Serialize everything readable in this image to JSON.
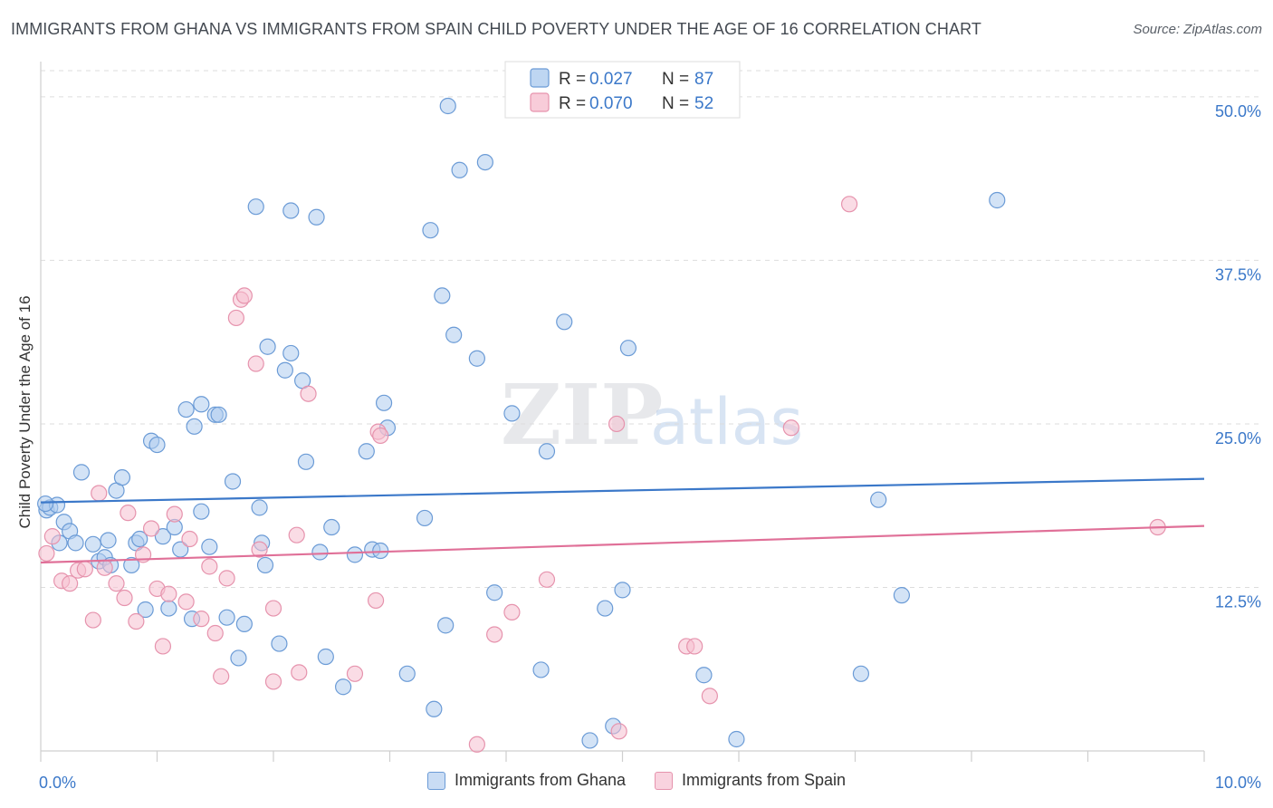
{
  "title": "IMMIGRANTS FROM GHANA VS IMMIGRANTS FROM SPAIN CHILD POVERTY UNDER THE AGE OF 16 CORRELATION CHART",
  "source": "Source: ZipAtlas.com",
  "watermark": {
    "zip": "ZIP",
    "atlas": "atlas"
  },
  "colors": {
    "ghana_fill": "#aeccef",
    "ghana_stroke": "#6b9bd6",
    "ghana_line": "#3b78c9",
    "spain_fill": "#f6bfd0",
    "spain_stroke": "#e693ad",
    "spain_line": "#e07098",
    "axis_label": "#3b78c9",
    "grid": "#dddddd"
  },
  "legend": {
    "rows": [
      {
        "r_label": "R =",
        "r_value": "0.027",
        "n_label": "N =",
        "n_value": "87"
      },
      {
        "r_label": "R =",
        "r_value": "0.070",
        "n_label": "N =",
        "n_value": "52"
      }
    ]
  },
  "chart_data": {
    "type": "scatter",
    "title": "IMMIGRANTS FROM GHANA VS IMMIGRANTS FROM SPAIN CHILD POVERTY UNDER THE AGE OF 16 CORRELATION CHART",
    "xlabel": "",
    "ylabel": "Child Poverty Under the Age of 16",
    "xlim": [
      0,
      10
    ],
    "ylim": [
      0,
      52
    ],
    "x_tick_labels": [
      {
        "value": 0,
        "label": "0.0%"
      },
      {
        "value": 10,
        "label": "10.0%"
      }
    ],
    "y_tick_labels": [
      {
        "value": 12.5,
        "label": "12.5%"
      },
      {
        "value": 25,
        "label": "25.0%"
      },
      {
        "value": 37.5,
        "label": "37.5%"
      },
      {
        "value": 50,
        "label": "50.0%"
      }
    ],
    "grid": true,
    "legend_position": "top-center",
    "series": [
      {
        "name": "Immigrants from Ghana",
        "r": 0.027,
        "n": 87,
        "trend": {
          "x": [
            0,
            10
          ],
          "y": [
            19.0,
            20.8
          ]
        },
        "points": [
          [
            0.05,
            18.4
          ],
          [
            0.08,
            18.6
          ],
          [
            0.14,
            18.8
          ],
          [
            0.16,
            15.9
          ],
          [
            0.2,
            17.5
          ],
          [
            0.25,
            16.8
          ],
          [
            0.3,
            15.9
          ],
          [
            0.35,
            21.3
          ],
          [
            0.45,
            15.8
          ],
          [
            0.5,
            14.5
          ],
          [
            0.55,
            14.8
          ],
          [
            0.6,
            14.2
          ],
          [
            0.58,
            16.1
          ],
          [
            0.65,
            19.9
          ],
          [
            0.7,
            20.9
          ],
          [
            0.78,
            14.2
          ],
          [
            0.82,
            15.9
          ],
          [
            0.85,
            16.2
          ],
          [
            0.9,
            10.8
          ],
          [
            0.95,
            23.7
          ],
          [
            1.0,
            23.4
          ],
          [
            1.05,
            16.4
          ],
          [
            1.1,
            10.9
          ],
          [
            1.15,
            17.1
          ],
          [
            1.2,
            15.4
          ],
          [
            1.25,
            26.1
          ],
          [
            1.3,
            10.1
          ],
          [
            1.32,
            24.8
          ],
          [
            1.38,
            26.5
          ],
          [
            1.38,
            18.3
          ],
          [
            1.45,
            15.6
          ],
          [
            1.5,
            25.7
          ],
          [
            1.53,
            25.7
          ],
          [
            1.6,
            10.2
          ],
          [
            1.65,
            20.6
          ],
          [
            1.7,
            7.1
          ],
          [
            1.75,
            9.7
          ],
          [
            1.85,
            41.6
          ],
          [
            1.88,
            18.6
          ],
          [
            1.9,
            15.9
          ],
          [
            1.93,
            14.2
          ],
          [
            1.95,
            30.9
          ],
          [
            2.05,
            8.2
          ],
          [
            2.1,
            29.1
          ],
          [
            2.15,
            41.3
          ],
          [
            2.15,
            30.4
          ],
          [
            2.25,
            28.3
          ],
          [
            2.28,
            22.1
          ],
          [
            2.37,
            40.8
          ],
          [
            2.4,
            15.2
          ],
          [
            2.45,
            7.2
          ],
          [
            2.5,
            17.1
          ],
          [
            2.6,
            4.9
          ],
          [
            2.7,
            15.0
          ],
          [
            2.8,
            22.9
          ],
          [
            2.85,
            15.4
          ],
          [
            2.92,
            15.3
          ],
          [
            2.95,
            26.6
          ],
          [
            2.98,
            24.7
          ],
          [
            3.15,
            5.9
          ],
          [
            3.3,
            17.8
          ],
          [
            3.35,
            39.8
          ],
          [
            3.38,
            3.2
          ],
          [
            3.45,
            34.8
          ],
          [
            3.48,
            9.6
          ],
          [
            3.5,
            49.3
          ],
          [
            3.55,
            31.8
          ],
          [
            3.6,
            44.4
          ],
          [
            3.75,
            30.0
          ],
          [
            3.82,
            45.0
          ],
          [
            3.9,
            12.1
          ],
          [
            4.05,
            25.8
          ],
          [
            4.3,
            6.2
          ],
          [
            4.35,
            22.9
          ],
          [
            4.5,
            32.8
          ],
          [
            4.72,
            0.8
          ],
          [
            4.85,
            10.9
          ],
          [
            4.92,
            1.9
          ],
          [
            5.0,
            12.3
          ],
          [
            5.05,
            30.8
          ],
          [
            5.7,
            5.8
          ],
          [
            5.98,
            0.9
          ],
          [
            7.05,
            5.9
          ],
          [
            7.2,
            19.2
          ],
          [
            7.4,
            11.9
          ],
          [
            8.22,
            42.1
          ],
          [
            0.04,
            18.9
          ]
        ]
      },
      {
        "name": "Immigrants from Spain",
        "r": 0.07,
        "n": 52,
        "trend": {
          "x": [
            0,
            10
          ],
          "y": [
            14.4,
            17.2
          ]
        },
        "points": [
          [
            0.05,
            15.1
          ],
          [
            0.1,
            16.4
          ],
          [
            0.18,
            13.0
          ],
          [
            0.25,
            12.8
          ],
          [
            0.32,
            13.8
          ],
          [
            0.38,
            13.9
          ],
          [
            0.45,
            10.0
          ],
          [
            0.5,
            19.7
          ],
          [
            0.55,
            14.0
          ],
          [
            0.65,
            12.8
          ],
          [
            0.72,
            11.7
          ],
          [
            0.75,
            18.2
          ],
          [
            0.82,
            9.9
          ],
          [
            0.88,
            15.0
          ],
          [
            0.95,
            17.0
          ],
          [
            1.0,
            12.4
          ],
          [
            1.05,
            8.0
          ],
          [
            1.1,
            12.0
          ],
          [
            1.15,
            18.1
          ],
          [
            1.25,
            11.4
          ],
          [
            1.28,
            16.2
          ],
          [
            1.38,
            10.1
          ],
          [
            1.45,
            14.1
          ],
          [
            1.5,
            9.0
          ],
          [
            1.55,
            5.7
          ],
          [
            1.6,
            13.2
          ],
          [
            1.68,
            33.1
          ],
          [
            1.72,
            34.5
          ],
          [
            1.75,
            34.8
          ],
          [
            1.85,
            29.6
          ],
          [
            1.88,
            15.4
          ],
          [
            2.0,
            10.9
          ],
          [
            2.0,
            5.3
          ],
          [
            2.2,
            16.5
          ],
          [
            2.22,
            6.0
          ],
          [
            2.3,
            27.3
          ],
          [
            2.7,
            5.9
          ],
          [
            2.88,
            11.5
          ],
          [
            2.9,
            24.4
          ],
          [
            2.92,
            24.1
          ],
          [
            3.75,
            0.5
          ],
          [
            3.9,
            8.9
          ],
          [
            4.05,
            10.6
          ],
          [
            4.35,
            13.1
          ],
          [
            4.95,
            25.0
          ],
          [
            4.97,
            1.5
          ],
          [
            5.55,
            8.0
          ],
          [
            5.62,
            8.0
          ],
          [
            5.75,
            4.2
          ],
          [
            6.45,
            24.7
          ],
          [
            6.95,
            41.8
          ],
          [
            9.6,
            17.1
          ]
        ]
      }
    ]
  },
  "bottom_legend": [
    {
      "label": "Immigrants from Ghana"
    },
    {
      "label": "Immigrants from Spain"
    }
  ]
}
